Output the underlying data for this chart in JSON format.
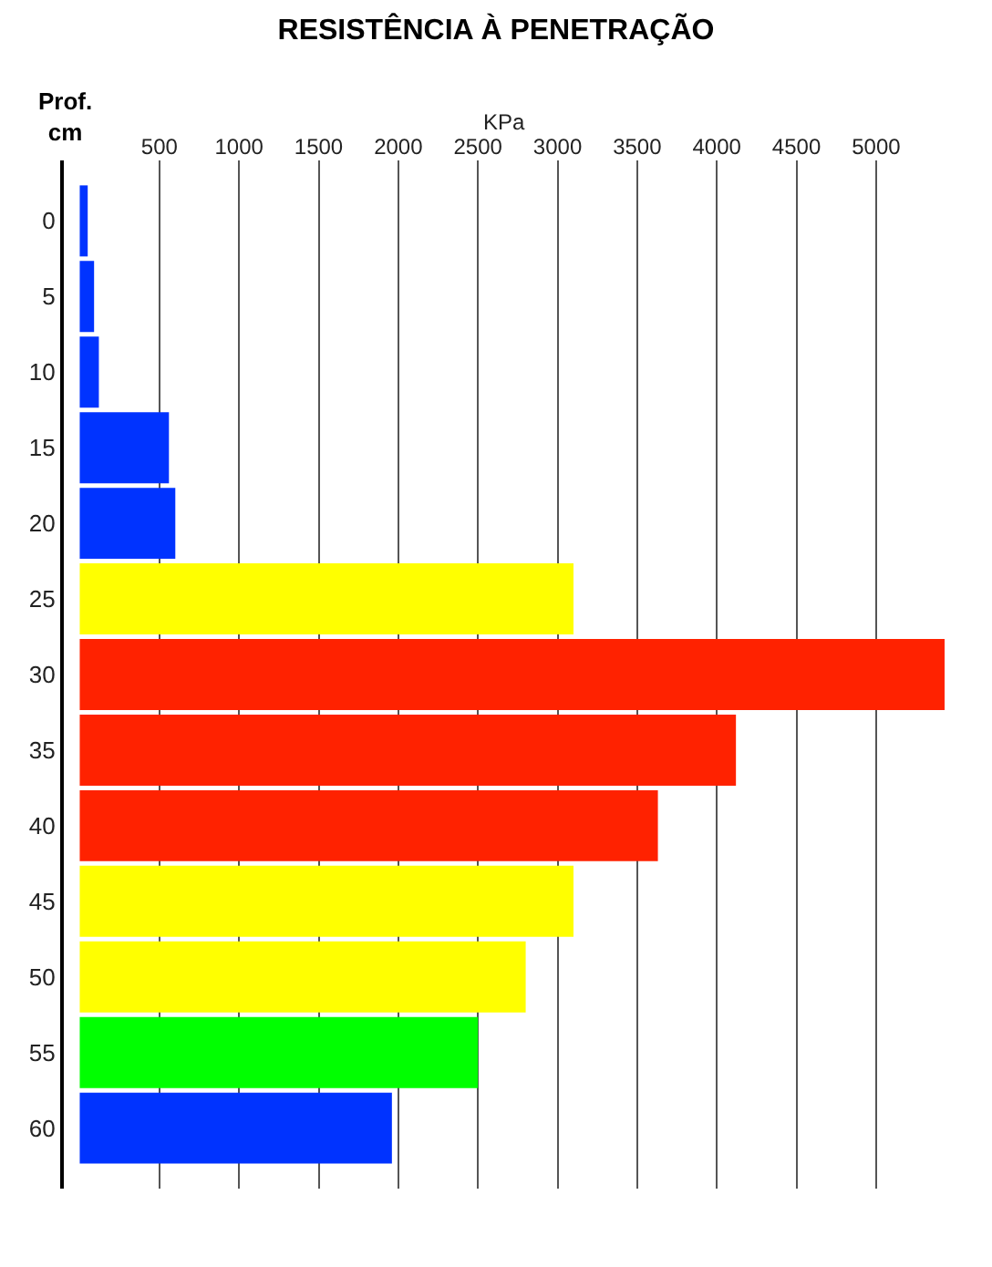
{
  "chart_data": {
    "type": "bar",
    "orientation": "horizontal",
    "title": "RESISTÊNCIA À PENETRAÇÃO",
    "xlabel": "KPa",
    "ylabel": "Prof.\ncm",
    "categories": [
      "0",
      "5",
      "10",
      "15",
      "20",
      "25",
      "30",
      "35",
      "40",
      "45",
      "50",
      "55",
      "60"
    ],
    "values": [
      50,
      90,
      120,
      560,
      600,
      3100,
      5430,
      4120,
      3630,
      3100,
      2800,
      2500,
      1960
    ],
    "colors": [
      "#0033ff",
      "#0033ff",
      "#0033ff",
      "#0033ff",
      "#0033ff",
      "#ffff00",
      "#ff2200",
      "#ff2200",
      "#ff2200",
      "#ffff00",
      "#ffff00",
      "#00ff00",
      "#0033ff"
    ],
    "xlim": [
      -100,
      5430
    ],
    "xticks": [
      500,
      1000,
      1500,
      2000,
      2500,
      3000,
      3500,
      4000,
      4500,
      5000
    ],
    "grid": "x",
    "legend": false
  }
}
